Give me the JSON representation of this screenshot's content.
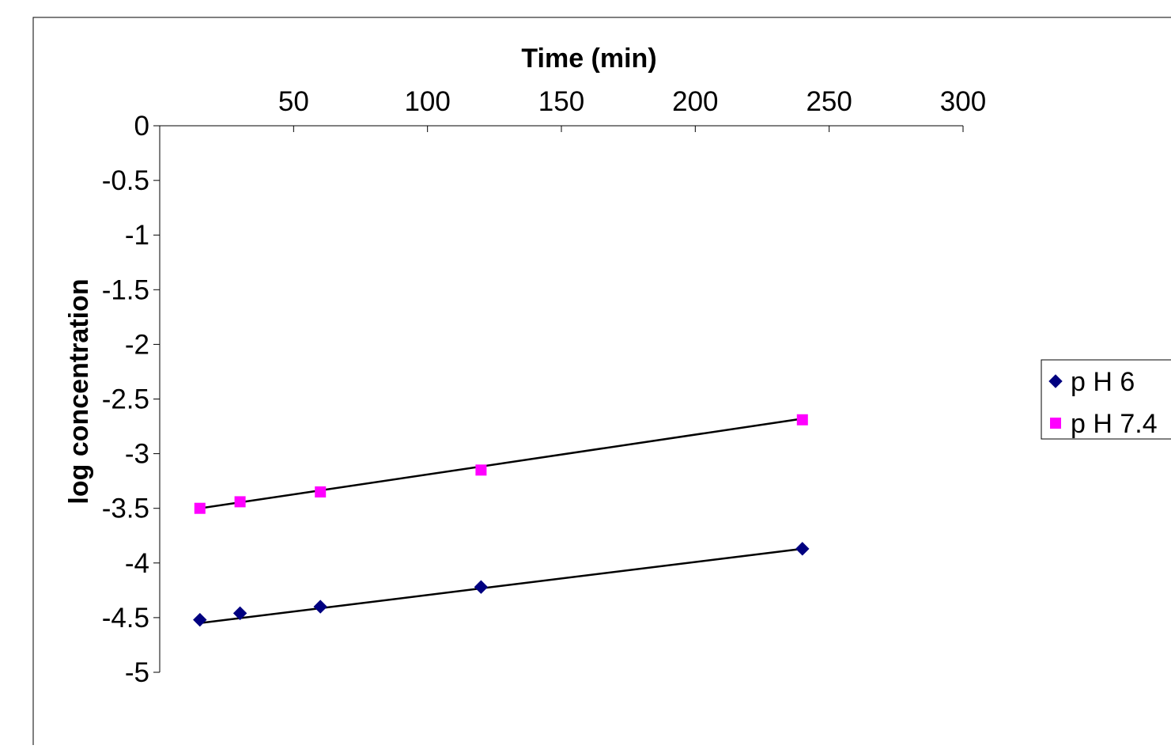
{
  "chart_data": {
    "type": "scatter",
    "title": "",
    "xlabel": "Time (min)",
    "ylabel": "log concentration",
    "xlim": [
      0,
      300
    ],
    "ylim": [
      -5,
      0
    ],
    "x_ticks": [
      50,
      100,
      150,
      200,
      250,
      300
    ],
    "x_tick_labels": [
      "50",
      "100",
      "150",
      "200",
      "250",
      "300"
    ],
    "y_ticks": [
      0,
      -0.5,
      -1,
      -1.5,
      -2,
      -2.5,
      -3,
      -3.5,
      -4,
      -4.5,
      -5
    ],
    "y_tick_labels": [
      "0",
      "-0.5",
      "-1",
      "-1.5",
      "-2",
      "-2.5",
      "-3",
      "-3.5",
      "-4",
      "-4.5",
      "-5"
    ],
    "x_axis_position": "top",
    "grid": false,
    "legend_position": "right",
    "series": [
      {
        "name": "p H 6",
        "marker": "diamond",
        "color": "#000080",
        "x": [
          15,
          30,
          60,
          120,
          240
        ],
        "y": [
          -4.52,
          -4.46,
          -4.4,
          -4.22,
          -3.87
        ],
        "trendline": {
          "x": [
            15,
            240
          ],
          "y": [
            -4.55,
            -3.87
          ]
        }
      },
      {
        "name": "p H 7.4",
        "marker": "square",
        "color": "#FF00FF",
        "x": [
          15,
          30,
          60,
          120,
          240
        ],
        "y": [
          -3.5,
          -3.44,
          -3.35,
          -3.15,
          -2.69
        ],
        "trendline": {
          "x": [
            15,
            240
          ],
          "y": [
            -3.5,
            -2.68
          ]
        }
      }
    ]
  }
}
